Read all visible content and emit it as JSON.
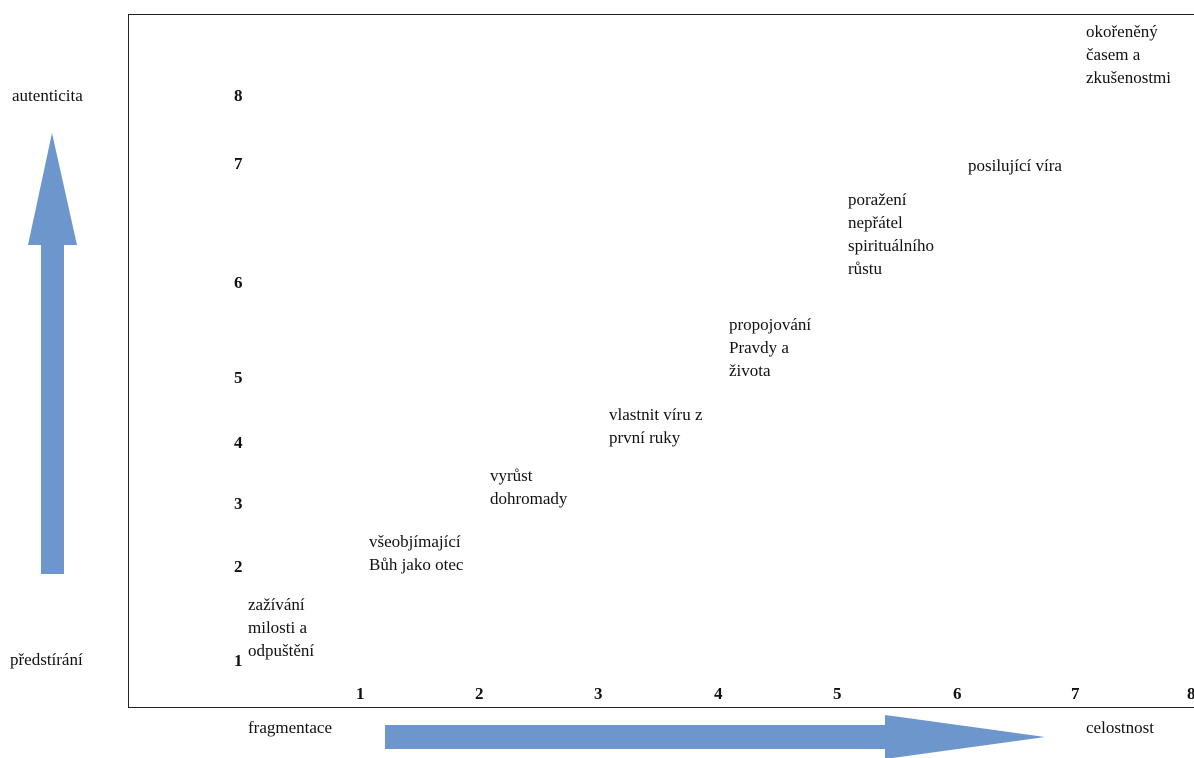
{
  "axes": {
    "y_top_label": "autenticita",
    "y_bottom_label": "předstírání",
    "x_left_label": "fragmentace",
    "x_right_label": "celostnost",
    "y_ticks": [
      "8",
      "7",
      "6",
      "5",
      "4",
      "3",
      "2",
      "1"
    ],
    "x_ticks": [
      "1",
      "2",
      "3",
      "4",
      "5",
      "6",
      "7",
      "8"
    ]
  },
  "stages": [
    {
      "lines": [
        "zažívání",
        "milosti a",
        "odpuštění"
      ]
    },
    {
      "lines": [
        "všeobjímající",
        "Bůh jako otec"
      ]
    },
    {
      "lines": [
        "vyrůst",
        "dohromady"
      ]
    },
    {
      "lines": [
        "vlastnit víru z",
        "první ruky"
      ]
    },
    {
      "lines": [
        "propojování",
        "Pravdy a",
        "života"
      ]
    },
    {
      "lines": [
        "poražení",
        "nepřátel",
        "spirituálního",
        "růstu"
      ]
    },
    {
      "lines": [
        "posilující víra"
      ]
    },
    {
      "lines": [
        "okořeněný",
        "časem a",
        "zkušenostmi"
      ]
    }
  ],
  "colors": {
    "arrow": "#6d96cc",
    "frame": "#222222"
  }
}
